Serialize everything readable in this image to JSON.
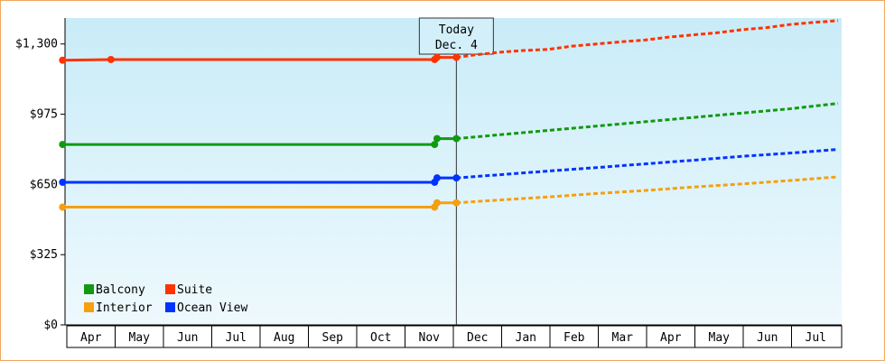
{
  "chart_data": {
    "type": "line",
    "y_ticks": [
      "$0",
      "$325",
      "$650",
      "$975",
      "$1,300"
    ],
    "y_tick_values": [
      0,
      325,
      650,
      975,
      1300
    ],
    "ylim": [
      0,
      1420
    ],
    "x_months": [
      "Apr",
      "May",
      "Jun",
      "Jul",
      "Aug",
      "Sep",
      "Oct",
      "Nov",
      "Dec",
      "Jan",
      "Feb",
      "Mar",
      "Apr",
      "May",
      "Jun",
      "Jul"
    ],
    "today_label": "Today",
    "today_date": "Dec. 4",
    "today_month_index": 8.1,
    "legend": [
      {
        "name": "Balcony",
        "color": "#119911"
      },
      {
        "name": "Suite",
        "color": "#ff3300"
      },
      {
        "name": "Interior",
        "color": "#f5a010"
      },
      {
        "name": "Ocean View",
        "color": "#0033ff"
      }
    ],
    "series": [
      {
        "name": "Suite",
        "color": "#ff3300",
        "actual": [
          [
            -0.05,
            1225
          ],
          [
            0.95,
            1228
          ],
          [
            7.65,
            1228
          ],
          [
            7.7,
            1238
          ],
          [
            8.1,
            1238
          ]
        ],
        "forecast": [
          [
            8.1,
            1238
          ],
          [
            8.5,
            1250
          ],
          [
            9.0,
            1262
          ],
          [
            9.5,
            1270
          ],
          [
            10.0,
            1275
          ],
          [
            10.5,
            1290
          ],
          [
            11.0,
            1300
          ],
          [
            11.5,
            1310
          ],
          [
            12.0,
            1318
          ],
          [
            12.5,
            1332
          ],
          [
            13.0,
            1342
          ],
          [
            13.5,
            1352
          ],
          [
            14.0,
            1366
          ],
          [
            14.5,
            1375
          ],
          [
            15.0,
            1390
          ],
          [
            15.5,
            1400
          ],
          [
            16.0,
            1408
          ]
        ]
      },
      {
        "name": "Balcony",
        "color": "#119911",
        "actual": [
          [
            -0.05,
            835
          ],
          [
            7.65,
            835
          ],
          [
            7.7,
            862
          ],
          [
            8.1,
            862
          ]
        ],
        "forecast": [
          [
            8.1,
            862
          ],
          [
            9.0,
            880
          ],
          [
            10.0,
            900
          ],
          [
            11.0,
            920
          ],
          [
            12.0,
            940
          ],
          [
            13.0,
            960
          ],
          [
            14.0,
            980
          ],
          [
            15.0,
            1000
          ],
          [
            16.0,
            1025
          ]
        ]
      },
      {
        "name": "Ocean View",
        "color": "#0033ff",
        "actual": [
          [
            -0.05,
            660
          ],
          [
            7.65,
            660
          ],
          [
            7.7,
            680
          ],
          [
            8.1,
            680
          ]
        ],
        "forecast": [
          [
            8.1,
            680
          ],
          [
            9.0,
            695
          ],
          [
            10.0,
            712
          ],
          [
            11.0,
            728
          ],
          [
            12.0,
            745
          ],
          [
            13.0,
            762
          ],
          [
            14.0,
            780
          ],
          [
            15.0,
            795
          ],
          [
            16.0,
            812
          ]
        ]
      },
      {
        "name": "Interior",
        "color": "#f5a010",
        "actual": [
          [
            -0.05,
            545
          ],
          [
            7.65,
            545
          ],
          [
            7.7,
            565
          ],
          [
            8.1,
            565
          ]
        ],
        "forecast": [
          [
            8.1,
            565
          ],
          [
            9.0,
            578
          ],
          [
            10.0,
            592
          ],
          [
            11.0,
            608
          ],
          [
            12.0,
            622
          ],
          [
            13.0,
            638
          ],
          [
            14.0,
            652
          ],
          [
            15.0,
            668
          ],
          [
            16.0,
            685
          ]
        ]
      }
    ]
  }
}
